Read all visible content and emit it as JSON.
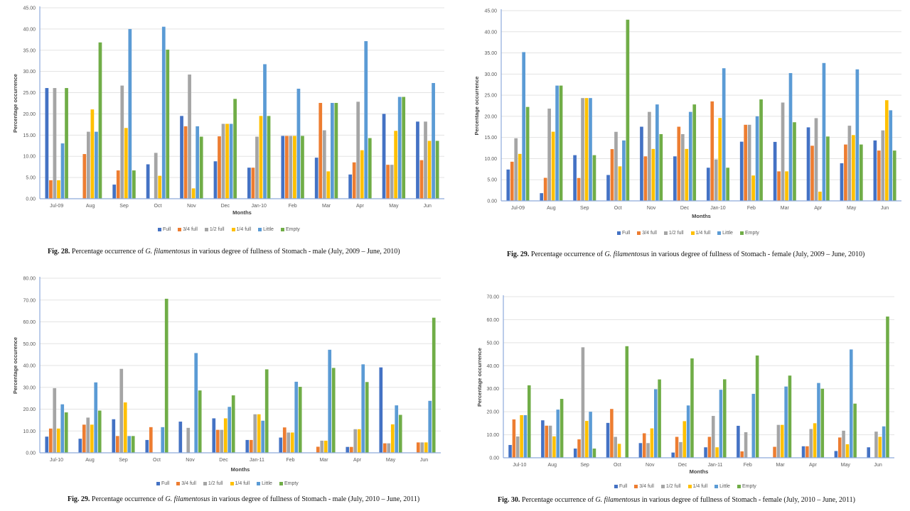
{
  "legend_colors": {
    "Full": "#4472C4",
    "3/4 full": "#ED7D31",
    "1/2 full": "#A5A5A5",
    "1/4 full": "#FFC000",
    "Little": "#5B9BD5",
    "Empty": "#70AD47"
  },
  "figures": [
    {
      "fig_label": "Fig. 28.",
      "caption_pre": " Percentage occurrence of ",
      "caption_species": "G. filamentosus",
      "caption_post": " in various degree of fullness of Stomach - male (July, 2009 – June, 2010)"
    },
    {
      "fig_label": "Fig. 29.",
      "caption_pre": " Percentage occurrence of ",
      "caption_species": "G. filamentosus",
      "caption_post": " in various degree of fullness of Stomach - female (July, 2009 – June, 2010)"
    },
    {
      "fig_label": "Fig. 29.",
      "caption_pre": " Percentage occurrence of ",
      "caption_species": "G. filamentosus",
      "caption_post": " in various degree of fullness of Stomach - male (July, 2010 – June, 2011)"
    },
    {
      "fig_label": "Fig. 30.",
      "caption_pre": " Percentage occurrence of ",
      "caption_species": "G. filamentosus",
      "caption_post": " in various degree of fullness of Stomach - female (July, 2010 – June, 2011)"
    }
  ],
  "chart_data": [
    {
      "type": "bar",
      "title": "",
      "xlabel": "Months",
      "ylabel": "Percentage occurrence",
      "ylim": [
        0,
        45
      ],
      "ytick_step": 5,
      "grid": true,
      "legend_position": "bottom",
      "categories": [
        "Jul-09",
        "Aug",
        "Sep",
        "Oct",
        "Nov",
        "Dec",
        "Jan-10",
        "Feb",
        "Mar",
        "Apr",
        "May",
        "Jun"
      ],
      "series": [
        {
          "name": "Full",
          "values": [
            26.09,
            0,
            3.33,
            8.11,
            19.51,
            8.82,
            7.32,
            14.81,
            9.68,
            5.71,
            20.0,
            18.18
          ]
        },
        {
          "name": "3/4 full",
          "values": [
            4.35,
            10.53,
            6.67,
            0,
            17.07,
            14.71,
            7.32,
            14.81,
            22.58,
            8.57,
            8.0,
            9.09
          ]
        },
        {
          "name": "1/2 full",
          "values": [
            26.09,
            15.79,
            26.67,
            10.81,
            29.27,
            17.65,
            14.63,
            14.81,
            16.13,
            22.86,
            8.0,
            18.18
          ]
        },
        {
          "name": "1/4 full",
          "values": [
            4.35,
            21.05,
            16.67,
            5.41,
            2.44,
            17.65,
            19.51,
            14.81,
            6.45,
            11.43,
            16.0,
            13.64
          ]
        },
        {
          "name": "Little",
          "values": [
            13.04,
            15.79,
            40.0,
            40.54,
            17.07,
            17.65,
            31.71,
            25.93,
            22.58,
            37.14,
            24.0,
            27.27
          ]
        },
        {
          "name": "Empty",
          "values": [
            26.09,
            36.84,
            6.67,
            35.14,
            14.63,
            23.53,
            19.51,
            14.81,
            22.58,
            14.29,
            24.0,
            13.64
          ]
        }
      ]
    },
    {
      "type": "bar",
      "title": "",
      "xlabel": "Months",
      "ylabel": "Percentage occurrence",
      "ylim": [
        0,
        45
      ],
      "ytick_step": 5,
      "grid": true,
      "legend_position": "bottom",
      "categories": [
        "Jul-09",
        "Aug",
        "Sep",
        "Oct",
        "Nov",
        "Dec",
        "Jan-10",
        "Feb",
        "Mar",
        "Apr",
        "May",
        "Jun"
      ],
      "series": [
        {
          "name": "Full",
          "values": [
            7.41,
            1.82,
            10.81,
            6.12,
            17.54,
            10.53,
            7.84,
            14.0,
            13.95,
            17.39,
            8.89,
            14.29
          ]
        },
        {
          "name": "3/4 full",
          "values": [
            9.26,
            5.45,
            5.41,
            12.24,
            10.53,
            17.54,
            23.53,
            18.0,
            6.98,
            13.04,
            13.33,
            11.9
          ]
        },
        {
          "name": "1/2 full",
          "values": [
            14.81,
            21.82,
            24.32,
            16.33,
            21.05,
            15.79,
            9.8,
            18.0,
            23.26,
            19.57,
            17.78,
            16.67
          ]
        },
        {
          "name": "1/4 full",
          "values": [
            11.11,
            16.36,
            24.32,
            8.16,
            12.28,
            12.28,
            19.61,
            6.0,
            6.98,
            2.17,
            15.56,
            23.81
          ]
        },
        {
          "name": "Little",
          "values": [
            35.19,
            27.27,
            24.32,
            14.29,
            22.81,
            21.05,
            31.37,
            20.0,
            30.23,
            32.61,
            31.11,
            21.43
          ]
        },
        {
          "name": "Empty",
          "values": [
            22.22,
            27.27,
            10.81,
            42.86,
            15.79,
            22.81,
            7.84,
            24.0,
            18.6,
            15.22,
            13.33,
            11.9
          ]
        }
      ]
    },
    {
      "type": "bar",
      "title": "",
      "xlabel": "Months",
      "ylabel": "Percentage occurence",
      "ylim": [
        0,
        80
      ],
      "ytick_step": 10,
      "grid": true,
      "legend_position": "bottom",
      "categories": [
        "Jul-10",
        "Aug",
        "Sep",
        "Oct",
        "Nov",
        "Dec",
        "Jan-11",
        "Feb",
        "Mar",
        "Apr",
        "May",
        "Jun"
      ],
      "series": [
        {
          "name": "Full",
          "values": [
            7.41,
            6.45,
            15.38,
            5.88,
            14.29,
            15.79,
            5.88,
            6.98,
            0,
            2.7,
            39.13,
            0
          ]
        },
        {
          "name": "3/4 full",
          "values": [
            11.11,
            12.9,
            7.69,
            11.76,
            0,
            10.53,
            5.88,
            11.63,
            2.78,
            2.7,
            4.35,
            4.76
          ]
        },
        {
          "name": "1/2 full",
          "values": [
            29.63,
            16.13,
            38.46,
            0,
            11.43,
            10.53,
            17.65,
            9.3,
            5.56,
            10.81,
            4.35,
            4.76
          ]
        },
        {
          "name": "1/4 full",
          "values": [
            11.11,
            12.9,
            23.08,
            0,
            0,
            15.79,
            17.65,
            9.3,
            5.56,
            10.81,
            13.04,
            4.76
          ]
        },
        {
          "name": "Little",
          "values": [
            22.22,
            32.26,
            7.69,
            11.76,
            45.71,
            21.05,
            14.71,
            32.56,
            47.22,
            40.54,
            21.74,
            23.81
          ]
        },
        {
          "name": "Empty",
          "values": [
            18.52,
            19.35,
            7.69,
            70.59,
            28.57,
            26.32,
            38.24,
            30.23,
            38.89,
            32.43,
            17.39,
            61.9
          ]
        }
      ]
    },
    {
      "type": "bar",
      "title": "",
      "xlabel": "Months",
      "ylabel": "Percentage occurrence",
      "ylim": [
        0,
        70
      ],
      "ytick_step": 10,
      "grid": true,
      "legend_position": "bottom",
      "categories": [
        "Jul-10",
        "Aug",
        "Sep",
        "Oct",
        "Nov",
        "Dec",
        "Jan-11",
        "Feb",
        "Mar",
        "Apr",
        "May",
        "Jun"
      ],
      "series": [
        {
          "name": "Full",
          "values": [
            5.56,
            16.28,
            4.0,
            15.15,
            6.38,
            2.27,
            4.55,
            13.89,
            0,
            5.0,
            2.94,
            4.55
          ]
        },
        {
          "name": "3/4 full",
          "values": [
            16.67,
            13.95,
            8.0,
            21.21,
            10.64,
            9.09,
            9.09,
            2.78,
            4.76,
            5.0,
            8.82,
            0
          ]
        },
        {
          "name": "1/2 full",
          "values": [
            9.26,
            13.95,
            48.0,
            9.09,
            6.38,
            6.82,
            18.18,
            11.11,
            14.29,
            12.5,
            11.76,
            11.36
          ]
        },
        {
          "name": "1/4 full",
          "values": [
            18.52,
            9.3,
            16.0,
            6.06,
            12.77,
            15.91,
            4.55,
            0,
            14.29,
            15.0,
            5.88,
            9.09
          ]
        },
        {
          "name": "Little",
          "values": [
            18.52,
            20.93,
            20.0,
            0,
            29.79,
            22.73,
            29.55,
            27.78,
            30.95,
            32.5,
            47.06,
            13.64
          ]
        },
        {
          "name": "Empty",
          "values": [
            31.48,
            25.58,
            4.0,
            48.48,
            34.04,
            43.18,
            34.09,
            44.44,
            35.71,
            30.0,
            23.53,
            61.36
          ]
        }
      ]
    }
  ]
}
